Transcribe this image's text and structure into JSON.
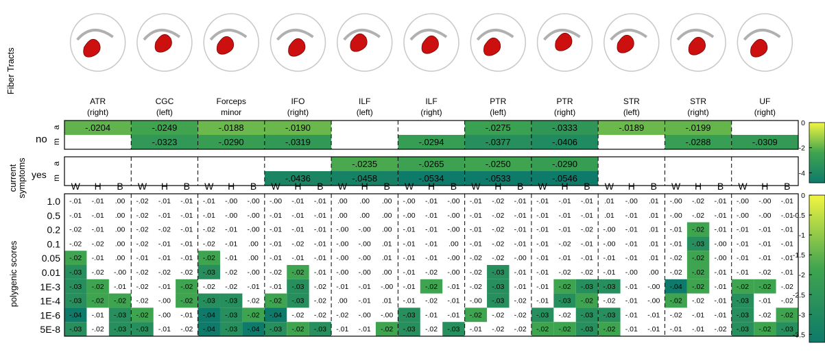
{
  "labels": {
    "fiber_tracts": "Fiber Tracts",
    "current_symptoms_line1": "current",
    "current_symptoms_line2": "symptoms",
    "no": "no",
    "yes": "yes",
    "a": "a",
    "m": "m",
    "polygenic_scores": "polygenic scores",
    "cols_sub": [
      "W",
      "H",
      "B"
    ]
  },
  "tracts": [
    {
      "name": "ATR",
      "side": "(right)"
    },
    {
      "name": "CGC",
      "side": "(left)"
    },
    {
      "name": "Forceps",
      "side": "minor"
    },
    {
      "name": "IFO",
      "side": "(right)"
    },
    {
      "name": "ILF",
      "side": "(left)"
    },
    {
      "name": "ILF",
      "side": "(right)"
    },
    {
      "name": "PTR",
      "side": "(left)"
    },
    {
      "name": "PTR",
      "side": "(right)"
    },
    {
      "name": "STR",
      "side": "(left)"
    },
    {
      "name": "STR",
      "side": "(right)"
    },
    {
      "name": "UF",
      "side": "(right)"
    }
  ],
  "colors": {
    "low": "#0e7a6a",
    "mid": "#3fa44f",
    "high": "#f2f542",
    "border": "#000000",
    "brain": "#c8c8c8",
    "tract": "#cc1010"
  },
  "chart_data": [
    {
      "type": "heatmap",
      "title": "current symptoms",
      "rows": [
        "no a",
        "no m",
        "yes a",
        "yes m"
      ],
      "columns": [
        "ATR (right)",
        "CGC (left)",
        "Forceps minor",
        "IFO (right)",
        "ILF (left)",
        "ILF (right)",
        "PTR (left)",
        "PTR (right)",
        "STR (left)",
        "STR (right)",
        "UF (right)"
      ],
      "values": [
        [
          "-.0204",
          "-.0249",
          "-.0188",
          "-.0190",
          "",
          "",
          "-.0275",
          "-.0333",
          "-.0189",
          "-.0199",
          ""
        ],
        [
          "",
          "-.0323",
          "-.0290",
          "-.0319",
          "",
          "-.0294",
          "-.0377",
          "-.0406",
          "",
          "-.0288",
          "-.0309"
        ],
        [
          "",
          "",
          "",
          "",
          "-.0235",
          "-.0265",
          "-.0250",
          "-.0290",
          "",
          "",
          ""
        ],
        [
          "",
          "",
          "",
          "-.0436",
          "-.0458",
          "-.0534",
          "-.0533",
          "-.0546",
          "",
          "",
          ""
        ]
      ],
      "colorbar_ticks": [
        "0",
        "-2",
        "-4"
      ],
      "color_range": [
        -0.05,
        0
      ]
    },
    {
      "type": "heatmap",
      "title": "polygenic scores",
      "rows": [
        "1.0",
        "0.5",
        "0.2",
        "0.1",
        "0.05",
        "0.01",
        "1E-3",
        "1E-4",
        "1E-6",
        "5E-8"
      ],
      "columns": [
        "ATR (right) W",
        "ATR (right) H",
        "ATR (right) B",
        "CGC (left) W",
        "CGC (left) H",
        "CGC (left) B",
        "Forceps minor W",
        "Forceps minor H",
        "Forceps minor B",
        "IFO (right) W",
        "IFO (right) H",
        "IFO (right) B",
        "ILF (left) W",
        "ILF (left) H",
        "ILF (left) B",
        "ILF (right) W",
        "ILF (right) H",
        "ILF (right) B",
        "PTR (left) W",
        "PTR (left) H",
        "PTR (left) B",
        "PTR (right) W",
        "PTR (right) H",
        "PTR (right) B",
        "STR (left) W",
        "STR (left) H",
        "STR (left) B",
        "STR (right) W",
        "STR (right) H",
        "STR (right) B",
        "UF (right) W",
        "UF (right) H",
        "UF (right) B"
      ],
      "values": [
        [
          "-.01",
          "-.01",
          ".00",
          "-.02",
          "-.01",
          "-.01",
          "-.01",
          "-.00",
          "-.00",
          "-.00",
          "-.01",
          "-.01",
          ".00",
          ".00",
          ".00",
          "-.00",
          "-.01",
          "-.00",
          "-.01",
          "-.02",
          "-.01",
          "-.01",
          "-.01",
          "-.01",
          ".01",
          "-.00",
          ".01",
          "-.00",
          "-.02",
          "-.01",
          "-.00",
          "-.00",
          "-.01"
        ],
        [
          "-.01",
          "-.01",
          ".00",
          "-.02",
          "-.01",
          "-.01",
          "-.01",
          "-.00",
          "-.00",
          "-.01",
          "-.01",
          "-.01",
          ".00",
          ".00",
          ".00",
          "-.00",
          "-.01",
          "-.00",
          "-.01",
          "-.02",
          "-.01",
          "-.01",
          "-.01",
          "-.01",
          ".01",
          "-.01",
          ".01",
          "-.00",
          "-.02",
          "-.01",
          "-.00",
          "-.00",
          "-.01"
        ],
        [
          "-.02",
          "-.01",
          ".00",
          "-.02",
          "-.02",
          "-.01",
          "-.02",
          "-.01",
          "-.00",
          "-.01",
          "-.01",
          "-.01",
          "-.00",
          "-.00",
          ".00",
          "-.01",
          "-.01",
          "-.00",
          "-.01",
          "-.02",
          "-.01",
          "-.01",
          "-.01",
          "-.02",
          "-.00",
          "-.01",
          ".01",
          "-.01",
          "-.02",
          "-.01",
          "-.01",
          "-.01",
          "-.01"
        ],
        [
          "-.02",
          "-.02",
          ".00",
          "-.02",
          "-.01",
          "-.01",
          "-.02",
          "-.01",
          ".00",
          "-.01",
          "-.02",
          "-.01",
          "-.00",
          "-.00",
          ".01",
          "-.01",
          "-.01",
          ".00",
          "-.01",
          "-.02",
          "-.01",
          "-.01",
          "-.02",
          "-.01",
          "-.00",
          "-.01",
          ".01",
          "-.01",
          "-.03",
          "-.00",
          "-.01",
          "-.01",
          "-.01"
        ],
        [
          "-.02",
          "-.01",
          ".00",
          "-.01",
          "-.01",
          "-.01",
          "-.02",
          "-.01",
          ".00",
          "-.01",
          "-.01",
          "-.01",
          "-.00",
          "-.00",
          ".01",
          "-.01",
          "-.01",
          "-.00",
          "-.02",
          "-.02",
          "-.00",
          "-.01",
          "-.01",
          "-.01",
          "-.01",
          "-.01",
          ".01",
          "-.02",
          "-.02",
          "-.00",
          "-.01",
          "-.01",
          "-.01"
        ],
        [
          "-.03",
          "-.02",
          "-.00",
          "-.02",
          "-.02",
          "-.02",
          "-.03",
          "-.02",
          "-.00",
          "-.02",
          "-.02",
          "-.01",
          "-.00",
          "-.00",
          ".00",
          "-.01",
          "-.02",
          "-.00",
          "-.02",
          "-.03",
          "-.01",
          "-.01",
          "-.02",
          "-.02",
          "-.01",
          "-.00",
          ".00",
          "-.02",
          "-.02",
          "-.01",
          "-.01",
          "-.02",
          "-.01"
        ],
        [
          "-.03",
          "-.02",
          "-.01",
          "-.02",
          "-.01",
          "-.02",
          "-.02",
          "-.02",
          "-.01",
          "-.01",
          "-.03",
          "-.02",
          "-.01",
          "-.01",
          "-.00",
          "-.01",
          "-.02",
          "-.01",
          "-.02",
          "-.03",
          "-.01",
          "-.01",
          "-.02",
          "-.03",
          "-.03",
          "-.01",
          "-.00",
          "-.04",
          "-.02",
          "-.01",
          "-.02",
          "-.02",
          "-.02"
        ],
        [
          "-.03",
          "-.02",
          "-.02",
          "-.02",
          "-.00",
          "-.02",
          "-.03",
          "-.03",
          "-.02",
          "-.02",
          "-.03",
          "-.02",
          ".00",
          "-.01",
          ".01",
          "-.01",
          "-.02",
          "-.01",
          "-.00",
          "-.03",
          "-.02",
          "-.01",
          "-.03",
          "-.02",
          "-.02",
          "-.01",
          "-.00",
          "-.02",
          "-.02",
          "-.01",
          "-.03",
          "-.01",
          "-.02"
        ],
        [
          "-.04",
          "-.01",
          "-.03",
          "-.02",
          "-.00",
          "-.01",
          "-.04",
          "-.03",
          "-.02",
          "-.04",
          "-.02",
          "-.02",
          "-.02",
          "-.00",
          "-.00",
          "-.03",
          "-.01",
          "-.01",
          "-.02",
          "-.02",
          "-.02",
          "-.03",
          "-.02",
          "-.03",
          "-.03",
          "-.01",
          "-.01",
          "-.02",
          "-.01",
          "-.01",
          "-.03",
          "-.02",
          "-.02"
        ],
        [
          "-.03",
          "-.02",
          "-.03",
          "-.03",
          "-.01",
          "-.02",
          "-.04",
          "-.03",
          "-.04",
          "-.03",
          "-.02",
          "-.03",
          "-.01",
          "-.01",
          "-.02",
          "-.03",
          "-.02",
          "-.03",
          "-.01",
          "-.02",
          "-.02",
          "-.02",
          "-.02",
          "-.03",
          "-.02",
          "-.01",
          "-.01",
          "-.01",
          "-.01",
          "-.02",
          "-.03",
          "-.02",
          "-.03"
        ]
      ],
      "highlighted": [
        [
          0,
          0,
          0,
          0,
          0,
          0,
          0,
          0,
          0,
          0,
          0,
          0,
          0,
          0,
          0,
          0,
          0,
          0,
          0,
          0,
          0,
          0,
          0,
          0,
          0,
          0,
          0,
          0,
          0,
          0,
          0,
          0,
          0
        ],
        [
          0,
          0,
          0,
          0,
          0,
          0,
          0,
          0,
          0,
          0,
          0,
          0,
          0,
          0,
          0,
          0,
          0,
          0,
          0,
          0,
          0,
          0,
          0,
          0,
          0,
          0,
          0,
          0,
          0,
          0,
          0,
          0,
          0
        ],
        [
          0,
          0,
          0,
          0,
          0,
          0,
          0,
          0,
          0,
          0,
          0,
          0,
          0,
          0,
          0,
          0,
          0,
          0,
          0,
          0,
          0,
          0,
          0,
          0,
          0,
          0,
          0,
          0,
          1,
          0,
          0,
          0,
          0
        ],
        [
          0,
          0,
          0,
          0,
          0,
          0,
          0,
          0,
          0,
          0,
          0,
          0,
          0,
          0,
          0,
          0,
          0,
          0,
          0,
          0,
          0,
          0,
          0,
          0,
          0,
          0,
          0,
          0,
          1,
          0,
          0,
          0,
          0
        ],
        [
          1,
          0,
          0,
          0,
          0,
          0,
          1,
          0,
          0,
          0,
          0,
          0,
          0,
          0,
          0,
          0,
          0,
          0,
          0,
          0,
          0,
          0,
          0,
          0,
          0,
          0,
          0,
          0,
          1,
          0,
          0,
          0,
          0
        ],
        [
          1,
          0,
          0,
          0,
          0,
          0,
          1,
          0,
          0,
          0,
          1,
          0,
          0,
          0,
          0,
          0,
          0,
          0,
          0,
          1,
          0,
          0,
          0,
          0,
          0,
          0,
          0,
          0,
          1,
          0,
          0,
          0,
          0
        ],
        [
          1,
          1,
          0,
          0,
          0,
          1,
          0,
          0,
          0,
          0,
          1,
          0,
          0,
          0,
          0,
          0,
          1,
          0,
          0,
          1,
          0,
          0,
          1,
          1,
          1,
          0,
          0,
          1,
          1,
          0,
          1,
          1,
          0
        ],
        [
          1,
          1,
          1,
          0,
          0,
          1,
          1,
          1,
          0,
          1,
          1,
          0,
          0,
          0,
          0,
          0,
          0,
          0,
          0,
          1,
          0,
          0,
          1,
          1,
          0,
          0,
          0,
          1,
          0,
          0,
          1,
          0,
          0
        ],
        [
          1,
          0,
          1,
          1,
          0,
          0,
          1,
          1,
          1,
          1,
          0,
          0,
          0,
          0,
          0,
          1,
          0,
          0,
          1,
          0,
          0,
          1,
          0,
          1,
          1,
          0,
          0,
          0,
          0,
          0,
          1,
          0,
          1
        ],
        [
          1,
          0,
          1,
          1,
          0,
          0,
          1,
          1,
          1,
          1,
          1,
          1,
          0,
          0,
          1,
          1,
          0,
          1,
          0,
          0,
          0,
          1,
          1,
          1,
          1,
          0,
          0,
          0,
          0,
          0,
          1,
          1,
          1
        ]
      ],
      "colorbar_ticks": [
        "0",
        "-0.5",
        "-1",
        "-1.5",
        "-2",
        "-2.5",
        "-3",
        "-3.5"
      ],
      "color_range": [
        -0.04,
        0
      ]
    }
  ]
}
